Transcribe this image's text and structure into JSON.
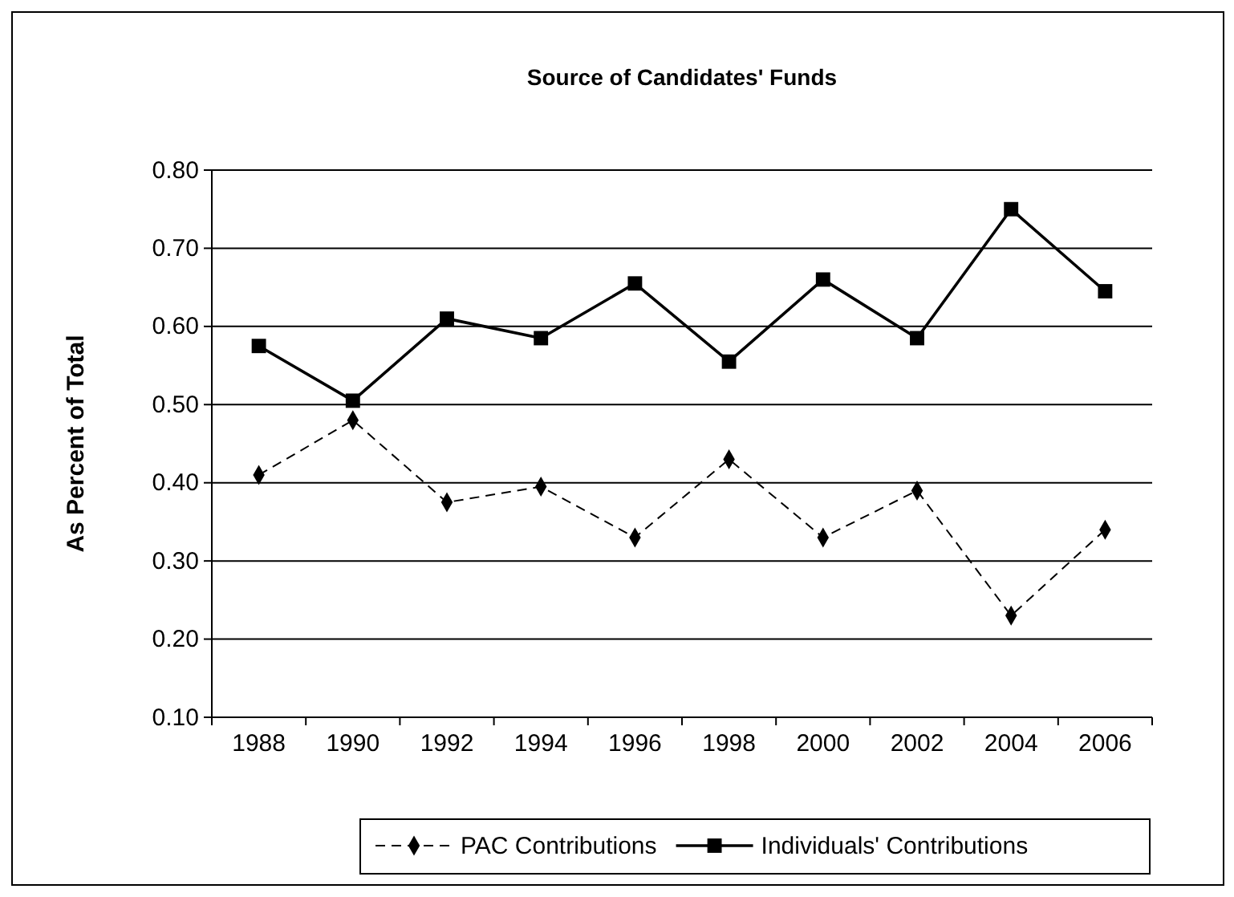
{
  "chart_data": {
    "type": "line",
    "title": "Source of Candidates' Funds",
    "ylabel": "As Percent of Total",
    "categories": [
      "1988",
      "1990",
      "1992",
      "1994",
      "1996",
      "1998",
      "2000",
      "2002",
      "2004",
      "2006"
    ],
    "series": [
      {
        "name": "PAC Contributions",
        "color": "#000000",
        "line_style": "dashed",
        "marker": "diamond",
        "values": [
          0.41,
          0.48,
          0.375,
          0.395,
          0.33,
          0.43,
          0.33,
          0.39,
          0.23,
          0.34
        ]
      },
      {
        "name": "Individuals' Contributions",
        "color": "#000000",
        "line_style": "solid",
        "marker": "square",
        "values": [
          0.575,
          0.505,
          0.61,
          0.585,
          0.655,
          0.555,
          0.66,
          0.585,
          0.75,
          0.645
        ]
      }
    ],
    "ylim": [
      0.1,
      0.8
    ],
    "yticks": [
      {
        "value": 0.1,
        "label": "0.10"
      },
      {
        "value": 0.2,
        "label": "0.20"
      },
      {
        "value": 0.3,
        "label": "0.30"
      },
      {
        "value": 0.4,
        "label": "0.40"
      },
      {
        "value": 0.5,
        "label": "0.50"
      },
      {
        "value": 0.6,
        "label": "0.60"
      },
      {
        "value": 0.7,
        "label": "0.70"
      },
      {
        "value": 0.8,
        "label": "0.80"
      }
    ],
    "grid": "y",
    "legend": "bottom"
  }
}
